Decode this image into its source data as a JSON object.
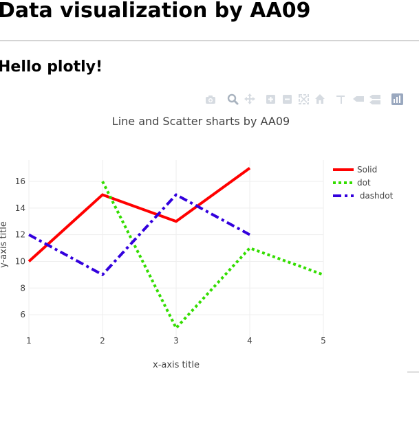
{
  "page": {
    "heading": "Data visualization by AA09",
    "subheading": "Hello plotly!"
  },
  "modebar": {
    "buttons": [
      {
        "name": "camera-icon",
        "glyph": "📷"
      },
      {
        "name": "zoom-icon",
        "glyph": "zoom"
      },
      {
        "name": "pan-icon",
        "glyph": "pan"
      },
      {
        "name": "zoom-in-icon",
        "glyph": "plus"
      },
      {
        "name": "zoom-out-icon",
        "glyph": "minus"
      },
      {
        "name": "autoscale-icon",
        "glyph": "autoscale"
      },
      {
        "name": "home-icon",
        "glyph": "home"
      },
      {
        "name": "spike-lines-icon",
        "glyph": "spike"
      },
      {
        "name": "hover-closest-icon",
        "glyph": "closest"
      },
      {
        "name": "hover-compare-icon",
        "glyph": "compare"
      },
      {
        "name": "plotly-logo-icon",
        "glyph": "logo"
      }
    ]
  },
  "chart_data": {
    "type": "line",
    "title": "Line and Scatter sharts by AA09",
    "xlabel": "x-axis title",
    "ylabel": "y-axis title",
    "xlim": [
      1,
      5
    ],
    "ylim": [
      4.2,
      17.6
    ],
    "x_ticks": [
      1,
      2,
      3,
      4,
      5
    ],
    "y_ticks": [
      6,
      8,
      10,
      12,
      14,
      16
    ],
    "grid": true,
    "legend_position": "top-right",
    "series": [
      {
        "name": "Solid",
        "dash": "solid",
        "color": "#ff0000",
        "x": [
          1,
          2,
          3,
          4
        ],
        "y": [
          10,
          15,
          13,
          17
        ]
      },
      {
        "name": "dot",
        "dash": "dot",
        "color": "#33dd00",
        "x": [
          2,
          3,
          4,
          5
        ],
        "y": [
          16,
          5,
          11,
          9
        ]
      },
      {
        "name": " dashdot",
        "dash": "dashdot",
        "color": "#3300dd",
        "x": [
          1,
          2,
          3,
          4
        ],
        "y": [
          12,
          9,
          15,
          12
        ]
      }
    ]
  }
}
